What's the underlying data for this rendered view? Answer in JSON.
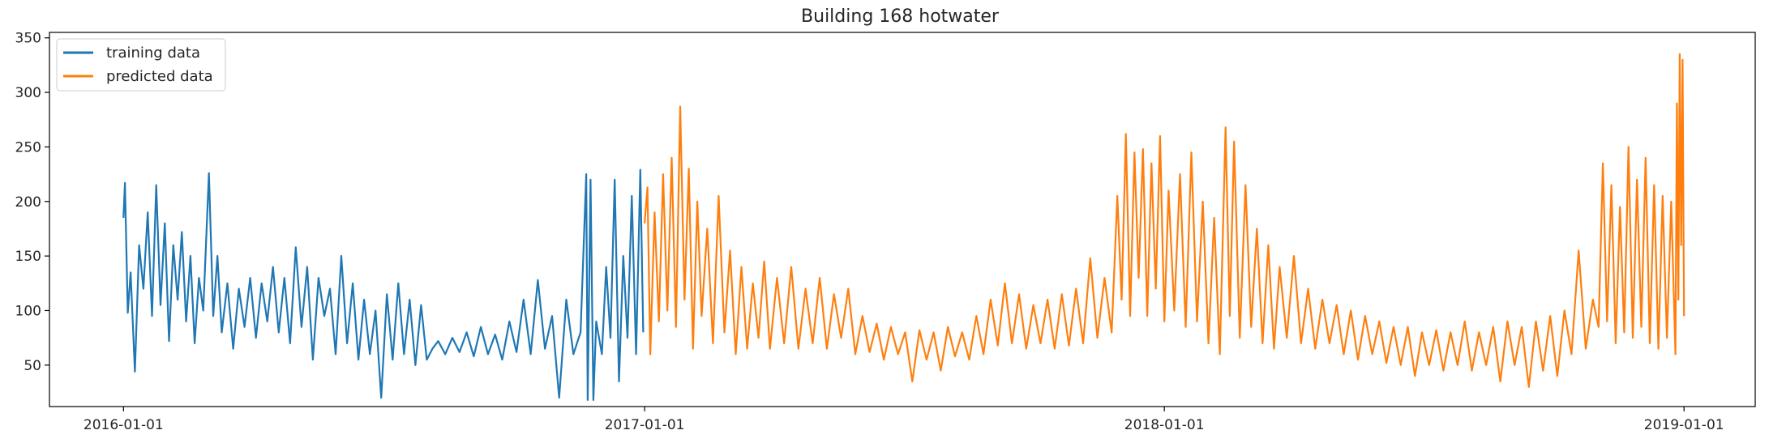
{
  "chart_data": {
    "type": "line",
    "title": "Building 168 hotwater",
    "xlabel": "",
    "ylabel": "",
    "x_ticks": [
      "2016-01-01",
      "2017-01-01",
      "2018-01-01",
      "2019-01-01"
    ],
    "y_ticks": [
      50,
      100,
      150,
      200,
      250,
      300,
      350
    ],
    "xlim": [
      "2015-11-10",
      "2019-02-20"
    ],
    "ylim": [
      12,
      355
    ],
    "grid": false,
    "legend_position": "top-left",
    "series": [
      {
        "name": "training data",
        "color": "#1f77b4",
        "points": [
          [
            "2016-01-01",
            185
          ],
          [
            "2016-01-02",
            217
          ],
          [
            "2016-01-04",
            98
          ],
          [
            "2016-01-06",
            135
          ],
          [
            "2016-01-09",
            44
          ],
          [
            "2016-01-12",
            160
          ],
          [
            "2016-01-15",
            120
          ],
          [
            "2016-01-18",
            190
          ],
          [
            "2016-01-21",
            95
          ],
          [
            "2016-01-24",
            215
          ],
          [
            "2016-01-27",
            105
          ],
          [
            "2016-01-30",
            180
          ],
          [
            "2016-02-02",
            72
          ],
          [
            "2016-02-05",
            160
          ],
          [
            "2016-02-08",
            110
          ],
          [
            "2016-02-11",
            172
          ],
          [
            "2016-02-14",
            90
          ],
          [
            "2016-02-17",
            150
          ],
          [
            "2016-02-20",
            70
          ],
          [
            "2016-02-23",
            130
          ],
          [
            "2016-02-26",
            100
          ],
          [
            "2016-03-01",
            226
          ],
          [
            "2016-03-04",
            95
          ],
          [
            "2016-03-07",
            150
          ],
          [
            "2016-03-10",
            80
          ],
          [
            "2016-03-14",
            125
          ],
          [
            "2016-03-18",
            65
          ],
          [
            "2016-03-22",
            120
          ],
          [
            "2016-03-26",
            85
          ],
          [
            "2016-03-30",
            130
          ],
          [
            "2016-04-03",
            75
          ],
          [
            "2016-04-07",
            125
          ],
          [
            "2016-04-11",
            90
          ],
          [
            "2016-04-15",
            140
          ],
          [
            "2016-04-19",
            80
          ],
          [
            "2016-04-23",
            130
          ],
          [
            "2016-04-27",
            70
          ],
          [
            "2016-05-01",
            158
          ],
          [
            "2016-05-05",
            85
          ],
          [
            "2016-05-09",
            140
          ],
          [
            "2016-05-13",
            55
          ],
          [
            "2016-05-17",
            130
          ],
          [
            "2016-05-21",
            95
          ],
          [
            "2016-05-25",
            120
          ],
          [
            "2016-05-29",
            60
          ],
          [
            "2016-06-02",
            150
          ],
          [
            "2016-06-06",
            70
          ],
          [
            "2016-06-10",
            125
          ],
          [
            "2016-06-14",
            55
          ],
          [
            "2016-06-18",
            110
          ],
          [
            "2016-06-22",
            60
          ],
          [
            "2016-06-26",
            100
          ],
          [
            "2016-06-30",
            20
          ],
          [
            "2016-07-04",
            115
          ],
          [
            "2016-07-08",
            55
          ],
          [
            "2016-07-12",
            125
          ],
          [
            "2016-07-16",
            60
          ],
          [
            "2016-07-20",
            110
          ],
          [
            "2016-07-24",
            50
          ],
          [
            "2016-07-28",
            105
          ],
          [
            "2016-08-01",
            55
          ],
          [
            "2016-08-05",
            65
          ],
          [
            "2016-08-09",
            72
          ],
          [
            "2016-08-14",
            60
          ],
          [
            "2016-08-19",
            75
          ],
          [
            "2016-08-24",
            62
          ],
          [
            "2016-08-29",
            80
          ],
          [
            "2016-09-03",
            58
          ],
          [
            "2016-09-08",
            85
          ],
          [
            "2016-09-13",
            60
          ],
          [
            "2016-09-18",
            78
          ],
          [
            "2016-09-23",
            55
          ],
          [
            "2016-09-28",
            90
          ],
          [
            "2016-10-03",
            62
          ],
          [
            "2016-10-08",
            110
          ],
          [
            "2016-10-13",
            60
          ],
          [
            "2016-10-18",
            128
          ],
          [
            "2016-10-23",
            65
          ],
          [
            "2016-10-28",
            95
          ],
          [
            "2016-11-02",
            20
          ],
          [
            "2016-11-07",
            110
          ],
          [
            "2016-11-12",
            60
          ],
          [
            "2016-11-17",
            80
          ],
          [
            "2016-11-21",
            225
          ],
          [
            "2016-11-22",
            18
          ],
          [
            "2016-11-24",
            220
          ],
          [
            "2016-11-26",
            18
          ],
          [
            "2016-11-28",
            90
          ],
          [
            "2016-12-02",
            60
          ],
          [
            "2016-12-05",
            140
          ],
          [
            "2016-12-08",
            75
          ],
          [
            "2016-12-11",
            220
          ],
          [
            "2016-12-14",
            35
          ],
          [
            "2016-12-17",
            150
          ],
          [
            "2016-12-20",
            75
          ],
          [
            "2016-12-23",
            205
          ],
          [
            "2016-12-26",
            60
          ],
          [
            "2016-12-29",
            229
          ],
          [
            "2016-12-31",
            80
          ]
        ]
      },
      {
        "name": "predicted data",
        "color": "#ff7f0e",
        "points": [
          [
            "2017-01-01",
            180
          ],
          [
            "2017-01-03",
            213
          ],
          [
            "2017-01-05",
            60
          ],
          [
            "2017-01-08",
            190
          ],
          [
            "2017-01-11",
            90
          ],
          [
            "2017-01-14",
            225
          ],
          [
            "2017-01-17",
            100
          ],
          [
            "2017-01-20",
            240
          ],
          [
            "2017-01-23",
            85
          ],
          [
            "2017-01-26",
            287
          ],
          [
            "2017-01-29",
            110
          ],
          [
            "2017-02-01",
            230
          ],
          [
            "2017-02-04",
            65
          ],
          [
            "2017-02-07",
            200
          ],
          [
            "2017-02-10",
            95
          ],
          [
            "2017-02-14",
            175
          ],
          [
            "2017-02-18",
            70
          ],
          [
            "2017-02-22",
            205
          ],
          [
            "2017-02-26",
            80
          ],
          [
            "2017-03-02",
            155
          ],
          [
            "2017-03-06",
            60
          ],
          [
            "2017-03-10",
            140
          ],
          [
            "2017-03-14",
            65
          ],
          [
            "2017-03-18",
            125
          ],
          [
            "2017-03-22",
            75
          ],
          [
            "2017-03-26",
            145
          ],
          [
            "2017-03-30",
            65
          ],
          [
            "2017-04-04",
            130
          ],
          [
            "2017-04-09",
            70
          ],
          [
            "2017-04-14",
            140
          ],
          [
            "2017-04-19",
            65
          ],
          [
            "2017-04-24",
            120
          ],
          [
            "2017-04-29",
            70
          ],
          [
            "2017-05-04",
            130
          ],
          [
            "2017-05-09",
            65
          ],
          [
            "2017-05-14",
            115
          ],
          [
            "2017-05-19",
            75
          ],
          [
            "2017-05-24",
            120
          ],
          [
            "2017-05-29",
            60
          ],
          [
            "2017-06-03",
            95
          ],
          [
            "2017-06-08",
            62
          ],
          [
            "2017-06-13",
            88
          ],
          [
            "2017-06-18",
            55
          ],
          [
            "2017-06-23",
            85
          ],
          [
            "2017-06-28",
            60
          ],
          [
            "2017-07-03",
            80
          ],
          [
            "2017-07-08",
            35
          ],
          [
            "2017-07-13",
            82
          ],
          [
            "2017-07-18",
            55
          ],
          [
            "2017-07-23",
            80
          ],
          [
            "2017-07-28",
            45
          ],
          [
            "2017-08-02",
            85
          ],
          [
            "2017-08-07",
            58
          ],
          [
            "2017-08-12",
            80
          ],
          [
            "2017-08-17",
            55
          ],
          [
            "2017-08-22",
            95
          ],
          [
            "2017-08-27",
            60
          ],
          [
            "2017-09-01",
            110
          ],
          [
            "2017-09-06",
            68
          ],
          [
            "2017-09-11",
            125
          ],
          [
            "2017-09-16",
            70
          ],
          [
            "2017-09-21",
            115
          ],
          [
            "2017-09-26",
            65
          ],
          [
            "2017-10-01",
            105
          ],
          [
            "2017-10-06",
            70
          ],
          [
            "2017-10-11",
            110
          ],
          [
            "2017-10-16",
            65
          ],
          [
            "2017-10-21",
            115
          ],
          [
            "2017-10-26",
            68
          ],
          [
            "2017-10-31",
            120
          ],
          [
            "2017-11-05",
            70
          ],
          [
            "2017-11-10",
            148
          ],
          [
            "2017-11-15",
            75
          ],
          [
            "2017-11-20",
            130
          ],
          [
            "2017-11-25",
            80
          ],
          [
            "2017-11-29",
            205
          ],
          [
            "2017-12-02",
            110
          ],
          [
            "2017-12-05",
            262
          ],
          [
            "2017-12-08",
            95
          ],
          [
            "2017-12-11",
            245
          ],
          [
            "2017-12-14",
            130
          ],
          [
            "2017-12-17",
            248
          ],
          [
            "2017-12-20",
            95
          ],
          [
            "2017-12-23",
            235
          ],
          [
            "2017-12-26",
            120
          ],
          [
            "2017-12-29",
            260
          ],
          [
            "2018-01-01",
            90
          ],
          [
            "2018-01-04",
            210
          ],
          [
            "2018-01-08",
            100
          ],
          [
            "2018-01-12",
            225
          ],
          [
            "2018-01-16",
            85
          ],
          [
            "2018-01-20",
            245
          ],
          [
            "2018-01-24",
            90
          ],
          [
            "2018-01-28",
            200
          ],
          [
            "2018-02-01",
            70
          ],
          [
            "2018-02-05",
            185
          ],
          [
            "2018-02-09",
            60
          ],
          [
            "2018-02-13",
            268
          ],
          [
            "2018-02-16",
            95
          ],
          [
            "2018-02-19",
            255
          ],
          [
            "2018-02-23",
            75
          ],
          [
            "2018-02-27",
            215
          ],
          [
            "2018-03-03",
            85
          ],
          [
            "2018-03-07",
            175
          ],
          [
            "2018-03-11",
            70
          ],
          [
            "2018-03-15",
            160
          ],
          [
            "2018-03-19",
            65
          ],
          [
            "2018-03-23",
            140
          ],
          [
            "2018-03-28",
            75
          ],
          [
            "2018-04-02",
            150
          ],
          [
            "2018-04-07",
            70
          ],
          [
            "2018-04-12",
            120
          ],
          [
            "2018-04-17",
            65
          ],
          [
            "2018-04-22",
            110
          ],
          [
            "2018-04-27",
            70
          ],
          [
            "2018-05-02",
            105
          ],
          [
            "2018-05-07",
            60
          ],
          [
            "2018-05-12",
            100
          ],
          [
            "2018-05-17",
            55
          ],
          [
            "2018-05-22",
            95
          ],
          [
            "2018-05-27",
            60
          ],
          [
            "2018-06-01",
            90
          ],
          [
            "2018-06-06",
            52
          ],
          [
            "2018-06-11",
            85
          ],
          [
            "2018-06-16",
            50
          ],
          [
            "2018-06-21",
            85
          ],
          [
            "2018-06-26",
            40
          ],
          [
            "2018-07-01",
            80
          ],
          [
            "2018-07-06",
            50
          ],
          [
            "2018-07-11",
            82
          ],
          [
            "2018-07-16",
            45
          ],
          [
            "2018-07-21",
            80
          ],
          [
            "2018-07-26",
            50
          ],
          [
            "2018-07-31",
            90
          ],
          [
            "2018-08-05",
            45
          ],
          [
            "2018-08-10",
            80
          ],
          [
            "2018-08-15",
            50
          ],
          [
            "2018-08-20",
            85
          ],
          [
            "2018-08-25",
            35
          ],
          [
            "2018-08-30",
            90
          ],
          [
            "2018-09-04",
            50
          ],
          [
            "2018-09-09",
            85
          ],
          [
            "2018-09-14",
            30
          ],
          [
            "2018-09-19",
            90
          ],
          [
            "2018-09-24",
            45
          ],
          [
            "2018-09-29",
            95
          ],
          [
            "2018-10-04",
            40
          ],
          [
            "2018-10-09",
            100
          ],
          [
            "2018-10-14",
            60
          ],
          [
            "2018-10-19",
            155
          ],
          [
            "2018-10-24",
            65
          ],
          [
            "2018-10-29",
            110
          ],
          [
            "2018-11-02",
            85
          ],
          [
            "2018-11-05",
            235
          ],
          [
            "2018-11-08",
            90
          ],
          [
            "2018-11-11",
            215
          ],
          [
            "2018-11-14",
            70
          ],
          [
            "2018-11-17",
            195
          ],
          [
            "2018-11-20",
            80
          ],
          [
            "2018-11-23",
            250
          ],
          [
            "2018-11-26",
            75
          ],
          [
            "2018-11-29",
            220
          ],
          [
            "2018-12-02",
            85
          ],
          [
            "2018-12-05",
            240
          ],
          [
            "2018-12-08",
            70
          ],
          [
            "2018-12-11",
            215
          ],
          [
            "2018-12-14",
            65
          ],
          [
            "2018-12-17",
            205
          ],
          [
            "2018-12-20",
            75
          ],
          [
            "2018-12-23",
            200
          ],
          [
            "2018-12-26",
            60
          ],
          [
            "2018-12-27",
            290
          ],
          [
            "2018-12-28",
            110
          ],
          [
            "2018-12-29",
            335
          ],
          [
            "2018-12-30",
            160
          ],
          [
            "2018-12-31",
            330
          ],
          [
            "2019-01-01",
            95
          ]
        ]
      }
    ]
  }
}
